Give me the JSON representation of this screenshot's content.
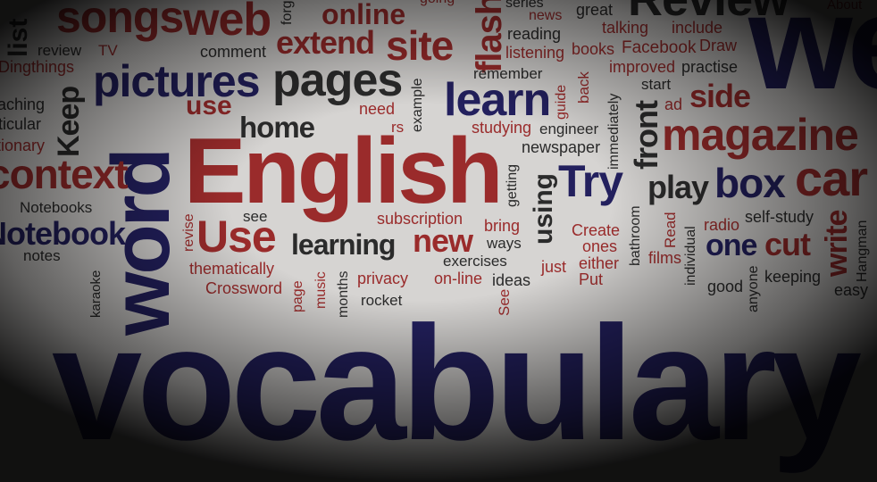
{
  "scene": "word cloud about learning English vocabulary",
  "colors": {
    "background": "#d6d4d2",
    "red": "#9a2b2b",
    "navy": "#23205e",
    "dark": "#2b2b2b"
  },
  "words": {
    "vocabulary": "vocabulary",
    "english": "English",
    "word": "word",
    "we": "we",
    "review": "Review",
    "songs": "songs",
    "web": "web",
    "online": "online",
    "site": "site",
    "flash": "flash",
    "extend": "extend",
    "pages": "pages",
    "pictures": "pictures",
    "learn": "learn",
    "magazine": "magazine",
    "car": "car",
    "home": "home",
    "use_lower": "use",
    "use_cap": "Use",
    "context": "context",
    "notebook": "Notebook",
    "notebooks": "Notebooks",
    "notes": "notes",
    "try": "Try",
    "play": "play",
    "box": "box",
    "side": "side",
    "front": "front",
    "new": "new",
    "learning": "learning",
    "cut": "cut",
    "one": "one",
    "write": "write",
    "keep": "Keep",
    "list": "list",
    "review_small": "review",
    "tv": "TV",
    "comment": "comment",
    "dingthings": "Dingthings",
    "reading": "reading",
    "listening": "listening",
    "books": "books",
    "facebook": "Facebook",
    "draw": "Draw",
    "talking": "talking",
    "include": "include",
    "great": "great",
    "series": "series",
    "news": "news",
    "going": "going",
    "remember": "remember",
    "improved": "improved",
    "practise": "practise",
    "example": "example",
    "guide": "guide",
    "back": "back",
    "immediately": "immediately",
    "start": "start",
    "ad": "ad",
    "need": "need",
    "rs": "rs",
    "studying": "studying",
    "engineer": "engineer",
    "newspaper": "newspaper",
    "getting": "getting",
    "using": "using",
    "see": "see",
    "revise": "revise",
    "subscription": "subscription",
    "bring": "bring",
    "ways": "ways",
    "create": "Create",
    "ones": "ones",
    "either": "either",
    "bathroom": "bathroom",
    "read": "Read",
    "radio": "radio",
    "self_study": "self-study",
    "hangman": "Hangman",
    "exercises": "exercises",
    "on_line": "on-line",
    "ideas": "ideas",
    "just": "just",
    "put": "Put",
    "films": "films",
    "individual": "individual",
    "anyone": "anyone",
    "good": "good",
    "keeping": "keeping",
    "easy": "easy",
    "thematically": "thematically",
    "crossword": "Crossword",
    "page": "page",
    "music": "music",
    "months": "months",
    "privacy": "privacy",
    "rocket": "rocket",
    "see_cap": "See",
    "karaoke": "karaoke",
    "teaching": "teaching",
    "ticular": "ticular",
    "tionary": "tionary",
    "forget": "forg",
    "about": "About"
  }
}
